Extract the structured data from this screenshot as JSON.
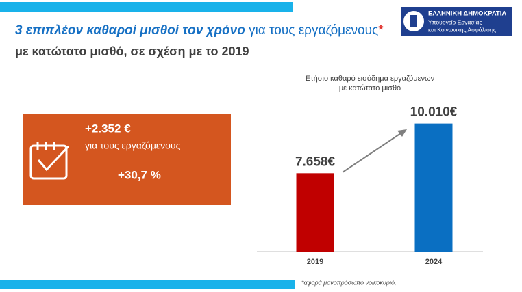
{
  "header": {
    "title_bold": "3 επιπλέον καθαροί μισθοί τον χρόνο",
    "title_rest": " για τους εργαζόμενους",
    "title_star": "*",
    "subtitle": "με κατώτατο μισθό, σε σχέση με το 2019"
  },
  "logo": {
    "line1": "ΕΛΛΗΝΙΚΗ ΔΗΜΟΚΡΑΤΙΑ",
    "line2": "Υπουργείο Εργασίας",
    "line3": "και Κοινωνικής Ασφάλισης"
  },
  "highlight": {
    "amount": "+2.352 €",
    "caption": "για τους εργαζόμενους",
    "percent": "+30,7 %"
  },
  "chart_data": {
    "type": "bar",
    "title_lines": [
      "Ετήσιο καθαρό εισόδημα εργαζόμενων",
      "με κατώτατο μισθό"
    ],
    "categories": [
      "2019",
      "2024"
    ],
    "values": [
      7658,
      10010
    ],
    "value_labels": [
      "7.658€",
      "10.010€"
    ],
    "colors": [
      "#c00000",
      "#0a6fc2"
    ],
    "ylim": [
      3950,
      11000
    ]
  },
  "footnote": "*αφορά μονοπρόσωπο νοικοκυριό,"
}
